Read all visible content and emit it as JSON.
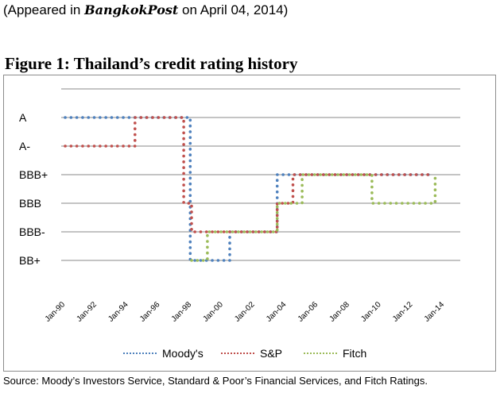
{
  "header": {
    "prefix": "(Appeared in ",
    "paper": "BangkokPost",
    "suffix": " on April 04, 2014)"
  },
  "figure_title": "Figure 1: Thailand’s credit rating history",
  "source_note": "Source: Moody’s Investors Service, Standard & Poor’s Financial Services, and Fitch Ratings.",
  "chart_data": {
    "type": "line",
    "title": "Figure 1: Thailand’s credit rating history",
    "xlabel": "",
    "ylabel": "",
    "x_ticks": [
      "Jan-90",
      "Jan-92",
      "Jan-94",
      "Jan-96",
      "Jan-98",
      "Jan-00",
      "Jan-02",
      "Jan-04",
      "Jan-06",
      "Jan-08",
      "Jan-10",
      "Jan-12",
      "Jan-14"
    ],
    "x_range": [
      "1990-01",
      "2014-01"
    ],
    "y_categories": [
      "BB+",
      "BBB-",
      "BBB",
      "BBB+",
      "A-",
      "A"
    ],
    "grid": "horizontal",
    "legend_position": "bottom",
    "line_style": "dotted",
    "step_chart": true,
    "series": [
      {
        "name": "Moody's",
        "color": "#4f81bd",
        "points": [
          {
            "date": "1990-01",
            "rating": "A"
          },
          {
            "date": "1997-12",
            "rating": "BB+"
          },
          {
            "date": "2000-06",
            "rating": "BBB-"
          },
          {
            "date": "2003-06",
            "rating": "BBB+"
          },
          {
            "date": "2013-01",
            "rating": "BBB+"
          }
        ]
      },
      {
        "name": "S&P",
        "color": "#c0504d",
        "points": [
          {
            "date": "1990-01",
            "rating": "A-"
          },
          {
            "date": "1994-06",
            "rating": "A"
          },
          {
            "date": "1997-07",
            "rating": "BBB"
          },
          {
            "date": "1998-01",
            "rating": "BBB-"
          },
          {
            "date": "2003-06",
            "rating": "BBB"
          },
          {
            "date": "2004-06",
            "rating": "BBB+"
          },
          {
            "date": "2013-01",
            "rating": "BBB+"
          }
        ]
      },
      {
        "name": "Fitch",
        "color": "#9bbb59",
        "points": [
          {
            "date": "1998-01",
            "rating": "BB+"
          },
          {
            "date": "1999-01",
            "rating": "BBB-"
          },
          {
            "date": "2003-06",
            "rating": "BBB"
          },
          {
            "date": "2005-01",
            "rating": "BBB+"
          },
          {
            "date": "2009-06",
            "rating": "BBB"
          },
          {
            "date": "2013-06",
            "rating": "BBB+"
          }
        ]
      }
    ]
  }
}
